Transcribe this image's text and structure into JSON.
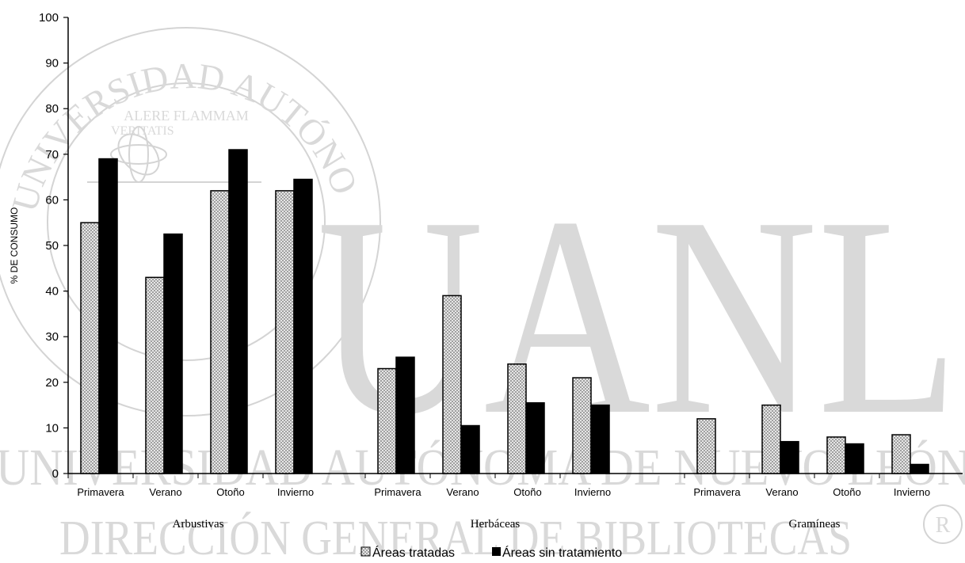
{
  "chart_data": {
    "type": "bar",
    "ylabel": "% DE CONSUMO",
    "ylim": [
      0,
      100
    ],
    "yticks": [
      0,
      10,
      20,
      30,
      40,
      50,
      60,
      70,
      80,
      90,
      100
    ],
    "groups": [
      {
        "name": "Arbustivas",
        "categories": [
          "Primavera",
          "Verano",
          "Otoño",
          "Invierno"
        ]
      },
      {
        "name": "Herbáceas",
        "categories": [
          "Primavera",
          "Verano",
          "Otoño",
          "Invierno"
        ]
      },
      {
        "name": "Gramíneas",
        "categories": [
          "Primavera",
          "Verano",
          "Otoño",
          "Invierno"
        ]
      }
    ],
    "series": [
      {
        "name": "Áreas tratadas",
        "pattern": "dotted",
        "color": "#b0b0b0",
        "values": [
          [
            55,
            43,
            62,
            62
          ],
          [
            23,
            39,
            24,
            21
          ],
          [
            12,
            15,
            8,
            8.5
          ]
        ]
      },
      {
        "name": "Áreas sin tratamiento",
        "pattern": "solid",
        "color": "#000000",
        "values": [
          [
            69,
            52.5,
            71,
            64.5
          ],
          [
            25.5,
            10.5,
            15.5,
            15
          ],
          [
            0,
            7,
            6.5,
            2
          ]
        ]
      }
    ],
    "legend": "bottom-center",
    "grid": false
  },
  "watermark": {
    "center": "UANL",
    "arc": "UNIVERSIDAD AUTÓNOMA DE NUEVO LEÓN",
    "bottom": "DIRECCIÓN GENERAL DE BIBLIOTECAS",
    "seal_top": "ALERE FLAMMAM",
    "seal_bottom": "VERITATIS"
  }
}
